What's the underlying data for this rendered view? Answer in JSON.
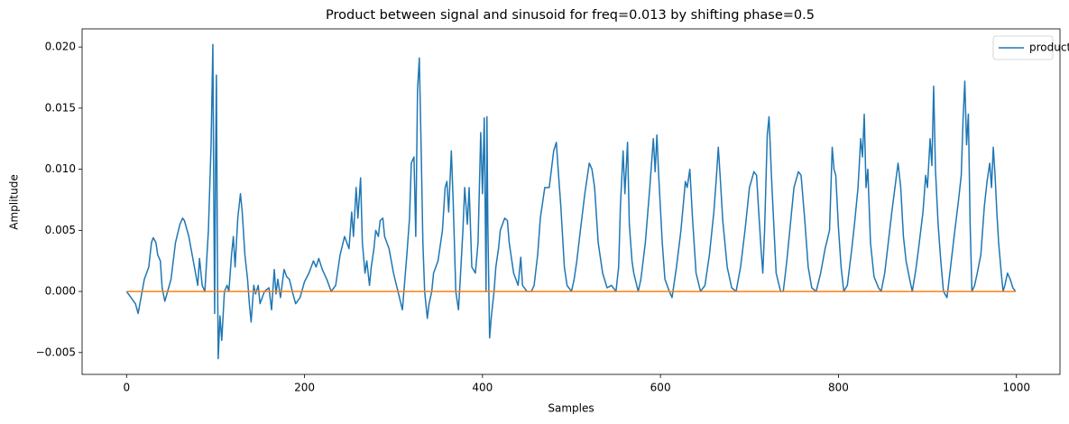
{
  "chart_data": {
    "type": "line",
    "title": "Product between signal and sinusoid for freq=0.013  by shifting phase=0.5",
    "x_label": "Samples",
    "y_label": "Amplitude",
    "xlim": [
      -49.95,
      1048.95
    ],
    "xticks": [
      0,
      200,
      400,
      600,
      800,
      1000
    ],
    "ylim": [
      -0.006785,
      0.021485
    ],
    "yticks": [
      {
        "value": -0.005,
        "label": "−0.005"
      },
      {
        "value": 0,
        "label": "0.000"
      },
      {
        "value": 0.005,
        "label": "0.005"
      },
      {
        "value": 0.01,
        "label": "0.010"
      },
      {
        "value": 0.015,
        "label": "0.015"
      },
      {
        "value": 0.02,
        "label": "0.020"
      }
    ],
    "legend": "upper right",
    "grid": false,
    "series": [
      {
        "name": "product",
        "color": "#1f77b4",
        "x": [
          0,
          5,
          10,
          13,
          15,
          20,
          25,
          28,
          30,
          33,
          35,
          38,
          40,
          43,
          45,
          50,
          55,
          60,
          63,
          65,
          70,
          75,
          80,
          82,
          85,
          88,
          92,
          95,
          97,
          98,
          99,
          100,
          101,
          102,
          103,
          105,
          107,
          110,
          113,
          115,
          118,
          120,
          122,
          125,
          128,
          130,
          133,
          136,
          138,
          140,
          143,
          145,
          148,
          150,
          155,
          160,
          163,
          166,
          168,
          170,
          173,
          177,
          180,
          183,
          187,
          190,
          195,
          200,
          205,
          210,
          213,
          216,
          220,
          225,
          230,
          235,
          240,
          245,
          250,
          253,
          255,
          258,
          260,
          263,
          265,
          268,
          270,
          273,
          275,
          278,
          280,
          283,
          285,
          288,
          290,
          295,
          300,
          305,
          310,
          315,
          318,
          320,
          323,
          325,
          327,
          329,
          331,
          333,
          335,
          338,
          340,
          343,
          345,
          350,
          355,
          358,
          360,
          362,
          365,
          367,
          370,
          373,
          375,
          378,
          380,
          383,
          385,
          388,
          392,
          395,
          398,
          400,
          402,
          404,
          405,
          406,
          408,
          410,
          413,
          415,
          418,
          420,
          425,
          428,
          430,
          435,
          440,
          443,
          445,
          450,
          455,
          458,
          462,
          465,
          470,
          475,
          480,
          483,
          485,
          488,
          492,
          495,
          500,
          503,
          506,
          510,
          515,
          520,
          523,
          526,
          530,
          535,
          540,
          545,
          550,
          553,
          555,
          558,
          560,
          563,
          565,
          568,
          570,
          575,
          578,
          583,
          588,
          592,
          594,
          596,
          598,
          602,
          605,
          610,
          613,
          618,
          623,
          628,
          630,
          633,
          636,
          640,
          645,
          650,
          655,
          660,
          663,
          665,
          667,
          670,
          675,
          680,
          685,
          690,
          695,
          700,
          705,
          708,
          710,
          713,
          715,
          717,
          720,
          722,
          725,
          728,
          730,
          735,
          738,
          742,
          746,
          750,
          755,
          758,
          762,
          766,
          770,
          775,
          780,
          785,
          790,
          793,
          795,
          797,
          800,
          803,
          806,
          810,
          815,
          818,
          822,
          825,
          827,
          829,
          831,
          833,
          836,
          840,
          845,
          848,
          852,
          856,
          860,
          864,
          867,
          870,
          873,
          876,
          880,
          883,
          887,
          890,
          895,
          898,
          900,
          903,
          905,
          907,
          909,
          912,
          915,
          918,
          922,
          926,
          930,
          935,
          938,
          940,
          942,
          944,
          946,
          948,
          950,
          953,
          956,
          960,
          964,
          967,
          970,
          972,
          974,
          976,
          978,
          980,
          983,
          985,
          987,
          990,
          993,
          996,
          999
        ],
        "values": [
          0,
          -0.0005,
          -0.001,
          -0.0018,
          -0.001,
          0.001,
          0.002,
          0.004,
          0.0044,
          0.004,
          0.003,
          0.0025,
          0.0003,
          -0.0008,
          -0.0003,
          0.001,
          0.004,
          0.0055,
          0.006,
          0.0058,
          0.0045,
          0.0025,
          0.0005,
          0.0027,
          0.0005,
          0,
          0.005,
          0.012,
          0.0202,
          0.008,
          -0.0018,
          0.01,
          0.0177,
          0.004,
          -0.0055,
          -0.002,
          -0.004,
          0,
          0.0005,
          0,
          0.003,
          0.0045,
          0.002,
          0.006,
          0.008,
          0.0065,
          0.003,
          0.001,
          -0.001,
          -0.0025,
          0.0005,
          -0.0002,
          0.0005,
          -0.001,
          0,
          0.0003,
          -0.0015,
          0.0018,
          -0.0002,
          0.001,
          -0.0005,
          0.0018,
          0.0012,
          0.001,
          -0.0002,
          -0.001,
          -0.0005,
          0.0008,
          0.0015,
          0.0025,
          0.002,
          0.0027,
          0.0018,
          0.001,
          0,
          0.0005,
          0.003,
          0.0045,
          0.0035,
          0.0065,
          0.0045,
          0.0085,
          0.006,
          0.0093,
          0.004,
          0.0015,
          0.0025,
          0.0005,
          0.002,
          0.0035,
          0.005,
          0.0045,
          0.0058,
          0.006,
          0.0045,
          0.0035,
          0.0015,
          0,
          -0.0015,
          0.003,
          0.006,
          0.0105,
          0.011,
          0.0045,
          0.0165,
          0.0191,
          0.012,
          0.004,
          0,
          -0.0022,
          -0.001,
          0,
          0.0015,
          0.0025,
          0.005,
          0.0085,
          0.009,
          0.0065,
          0.0115,
          0.0075,
          0,
          -0.0015,
          0.001,
          0.005,
          0.0085,
          0.0055,
          0.0085,
          0.002,
          0.0015,
          0.004,
          0.013,
          0.008,
          0.0142,
          0,
          0.0143,
          0.0055,
          -0.0038,
          -0.002,
          0,
          0.002,
          0.0035,
          0.005,
          0.006,
          0.0058,
          0.004,
          0.0015,
          0.0005,
          0.0028,
          0.0005,
          0,
          0,
          0.0005,
          0.003,
          0.006,
          0.0085,
          0.0085,
          0.0115,
          0.0122,
          0.01,
          0.007,
          0.002,
          0.0005,
          0,
          0.001,
          0.0025,
          0.005,
          0.008,
          0.0105,
          0.01,
          0.0085,
          0.004,
          0.0015,
          0.0003,
          0.0005,
          0,
          0.002,
          0.007,
          0.0115,
          0.008,
          0.0122,
          0.0055,
          0.0025,
          0.0015,
          0,
          0.001,
          0.004,
          0.0085,
          0.0125,
          0.0098,
          0.0128,
          0.0095,
          0.004,
          0.001,
          0,
          -0.0005,
          0.002,
          0.005,
          0.009,
          0.0085,
          0.01,
          0.006,
          0.0015,
          0,
          0.0005,
          0.003,
          0.0065,
          0.0095,
          0.0118,
          0.0095,
          0.0058,
          0.002,
          0.0003,
          0,
          0.002,
          0.005,
          0.0085,
          0.0098,
          0.0095,
          0.007,
          0.0035,
          0.0015,
          0.005,
          0.0128,
          0.0143,
          0.009,
          0.0045,
          0.0015,
          0,
          0,
          0.0025,
          0.0055,
          0.0085,
          0.0098,
          0.0095,
          0.006,
          0.002,
          0.0003,
          0,
          0.0015,
          0.0035,
          0.005,
          0.0118,
          0.01,
          0.0095,
          0.0052,
          0.002,
          0,
          0.0005,
          0.0035,
          0.0055,
          0.0085,
          0.0125,
          0.011,
          0.0145,
          0.0085,
          0.01,
          0.004,
          0.0012,
          0.0003,
          0,
          0.0015,
          0.004,
          0.0065,
          0.0088,
          0.0105,
          0.0085,
          0.0045,
          0.0025,
          0.001,
          0,
          0.0018,
          0.0035,
          0.0065,
          0.0095,
          0.0085,
          0.0125,
          0.0103,
          0.0168,
          0.01,
          0.0055,
          0.0025,
          0,
          -0.0005,
          0.002,
          0.0045,
          0.0075,
          0.0095,
          0.014,
          0.0172,
          0.012,
          0.0145,
          0.0055,
          0,
          0.0005,
          0.0015,
          0.003,
          0.007,
          0.009,
          0.0105,
          0.0085,
          0.0118,
          0.0095,
          0.0065,
          0.004,
          0.0015,
          0,
          0.0005,
          0.0015,
          0.001,
          0.0003,
          0
        ]
      },
      {
        "color": "#ff7f0e",
        "x": [
          0,
          999
        ],
        "values": [
          0,
          0
        ]
      }
    ]
  }
}
